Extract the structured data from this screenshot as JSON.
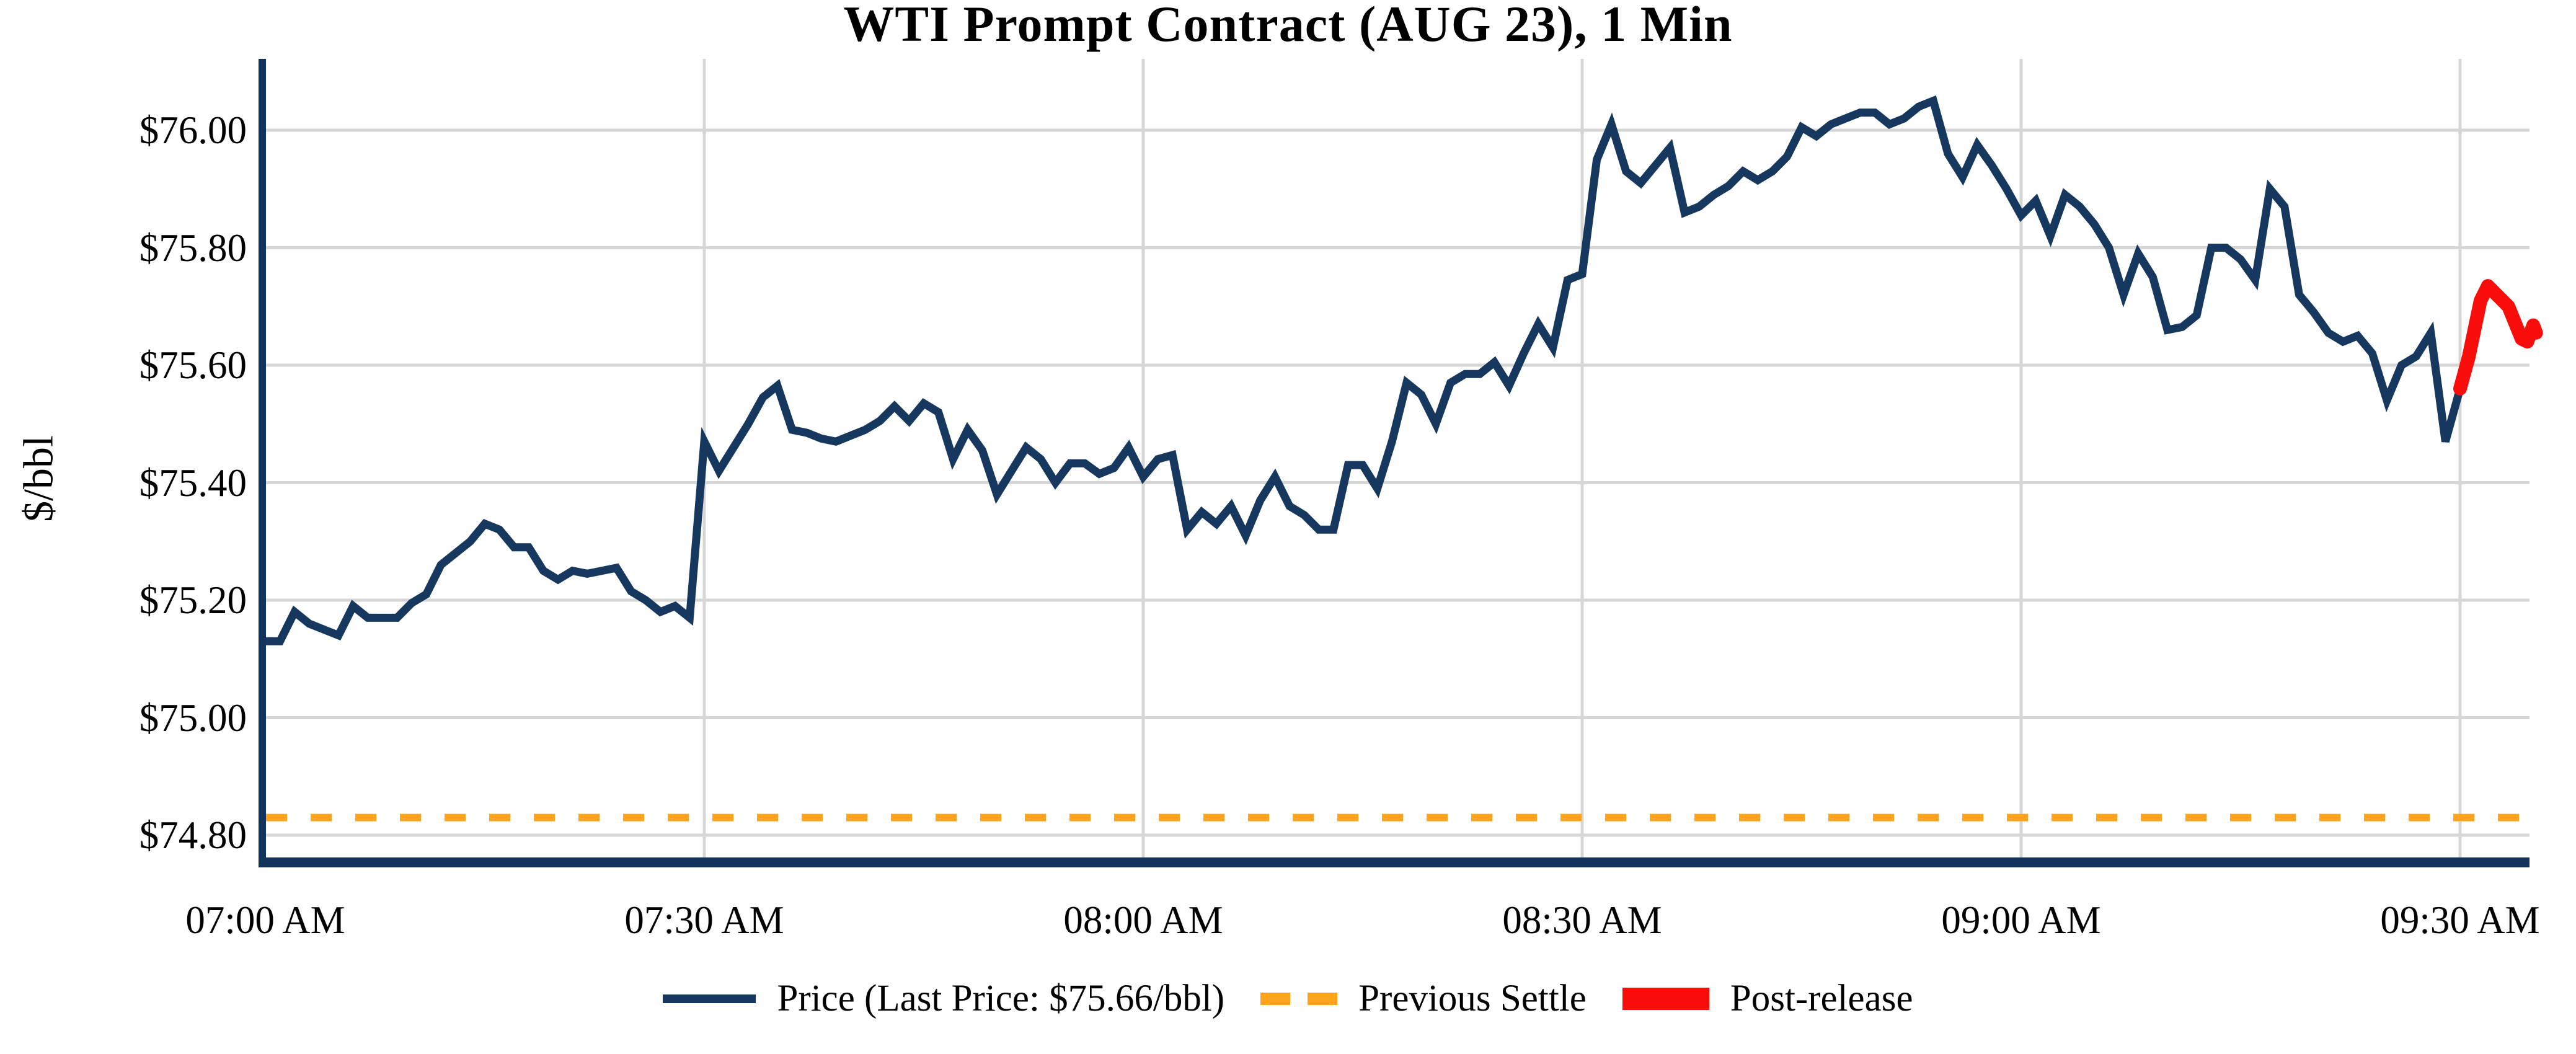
{
  "title": "WTI Prompt Contract (AUG 23), 1 Min",
  "y_axis": {
    "label": "$/bbl",
    "tick_labels": [
      "$76.00",
      "$75.80",
      "$75.60",
      "$75.40",
      "$75.20",
      "$75.00",
      "$74.80"
    ],
    "tick_values": [
      76.0,
      75.8,
      75.6,
      75.4,
      75.2,
      75.0,
      74.8
    ]
  },
  "x_axis": {
    "tick_labels": [
      "07:00 AM",
      "07:30 AM",
      "08:00 AM",
      "08:30 AM",
      "09:00 AM",
      "09:30 AM"
    ],
    "tick_minutes": [
      0,
      30,
      60,
      90,
      120,
      150
    ]
  },
  "legend": {
    "price_label": "Price (Last Price: $75.66/bbl)",
    "settle_label": "Previous Settle",
    "post_label": "Post-release"
  },
  "colors": {
    "price_line": "#16375E",
    "settle_line": "#FFA41C",
    "post_line": "#F90D0B",
    "grid": "#D6D6D6",
    "spine": "#12335C"
  },
  "chart_data": {
    "type": "line",
    "title": "WTI Prompt Contract (AUG 23), 1 Min",
    "xlabel": "",
    "ylabel": "$/bbl",
    "grid": true,
    "legend_position": "bottom-center",
    "x_unit": "minutes after 07:00 AM, 1-minute bars",
    "ylim": [
      74.76,
      76.12
    ],
    "xlim_minutes": [
      0,
      157
    ],
    "last_price": "$75.66/bbl",
    "previous_settle": 74.83,
    "series": [
      {
        "name": "Price (Last Price: $75.66/bbl)",
        "style": "solid",
        "start_minute": 0,
        "step_minutes": 1,
        "values": [
          75.13,
          75.13,
          75.18,
          75.16,
          75.15,
          75.14,
          75.19,
          75.17,
          75.17,
          75.17,
          75.195,
          75.21,
          75.26,
          75.28,
          75.3,
          75.33,
          75.32,
          75.29,
          75.29,
          75.25,
          75.235,
          75.25,
          75.245,
          75.25,
          75.255,
          75.215,
          75.2,
          75.18,
          75.19,
          75.17,
          75.47,
          75.42,
          75.46,
          75.5,
          75.545,
          75.565,
          75.49,
          75.485,
          75.475,
          75.47,
          75.48,
          75.49,
          75.505,
          75.53,
          75.505,
          75.535,
          75.52,
          75.44,
          75.49,
          75.455,
          75.38,
          75.42,
          75.46,
          75.44,
          75.4,
          75.433,
          75.433,
          75.415,
          75.425,
          75.46,
          75.41,
          75.44,
          75.447,
          75.32,
          75.35,
          75.33,
          75.36,
          75.31,
          75.37,
          75.41,
          75.36,
          75.345,
          75.32,
          75.32,
          75.43,
          75.43,
          75.39,
          75.47,
          75.57,
          75.55,
          75.5,
          75.57,
          75.585,
          75.585,
          75.605,
          75.565,
          75.62,
          75.67,
          75.63,
          75.745,
          75.755,
          75.95,
          76.01,
          75.93,
          75.91,
          75.94,
          75.97,
          75.86,
          75.87,
          75.89,
          75.905,
          75.93,
          75.915,
          75.93,
          75.955,
          76.005,
          75.99,
          76.01,
          76.02,
          76.03,
          76.03,
          76.01,
          76.02,
          76.04,
          76.05,
          75.96,
          75.92,
          75.975,
          75.94,
          75.9,
          75.855,
          75.88,
          75.82,
          75.89,
          75.87,
          75.84,
          75.8,
          75.72,
          75.79,
          75.75,
          75.66,
          75.665,
          75.685,
          75.8,
          75.8,
          75.78,
          75.745,
          75.9,
          75.87,
          75.72,
          75.69,
          75.655,
          75.64,
          75.65,
          75.62,
          75.54,
          75.6,
          75.615,
          75.655,
          75.47,
          75.56
        ]
      },
      {
        "name": "Previous Settle",
        "style": "dashed",
        "value": 74.83
      },
      {
        "name": "Post-release",
        "style": "solid-thick",
        "points": [
          [
            150.0,
            75.56
          ],
          [
            150.6,
            75.615
          ],
          [
            151.4,
            75.71
          ],
          [
            151.9,
            75.735
          ],
          [
            152.7,
            75.715
          ],
          [
            153.3,
            75.7
          ],
          [
            154.2,
            75.645
          ],
          [
            154.6,
            75.64
          ],
          [
            155.0,
            75.668
          ],
          [
            155.2,
            75.655
          ]
        ]
      }
    ]
  }
}
